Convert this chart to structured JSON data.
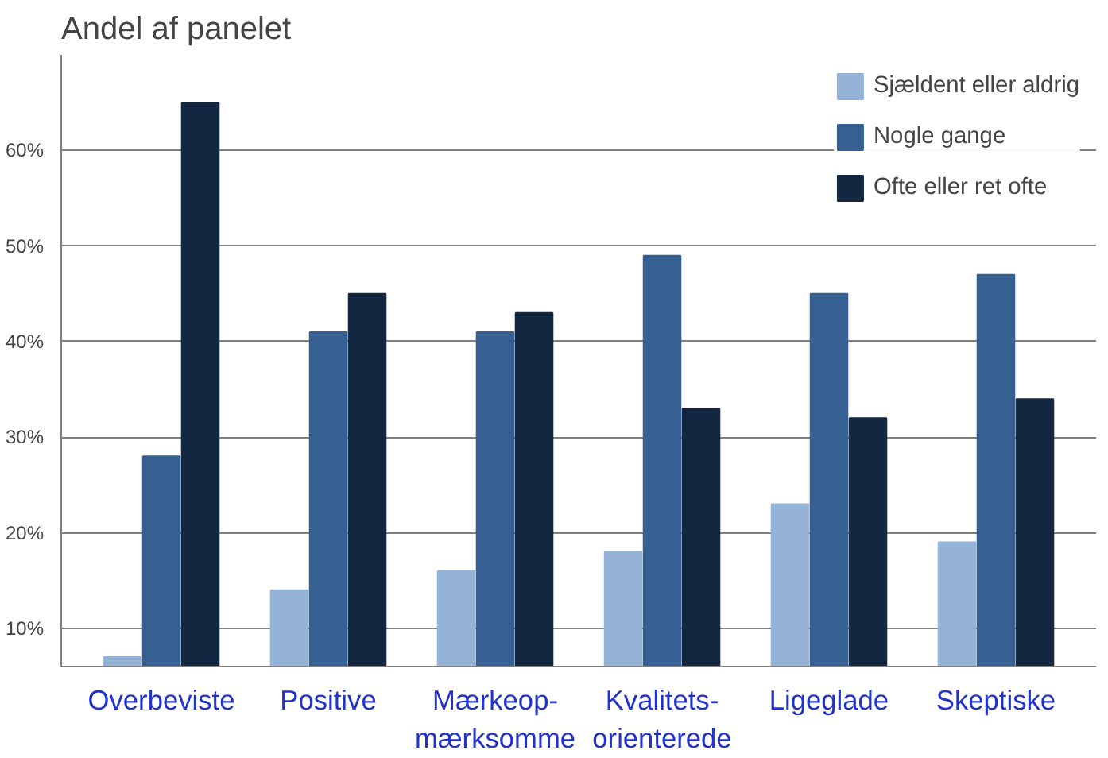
{
  "chart_data": {
    "type": "bar",
    "title": "Andel af panelet",
    "categories": [
      "Overbeviste",
      "Positive",
      "Mærkeop-\nmærksomme",
      "Kvalitets-\norienterede",
      "Ligeglade",
      "Skeptiske"
    ],
    "series": [
      {
        "name": "Sjældent eller aldrig",
        "color": "#95b3d7",
        "values": [
          7,
          14,
          16,
          18,
          23,
          19
        ]
      },
      {
        "name": "Nogle gange",
        "color": "#366092",
        "values": [
          28,
          41,
          41,
          49,
          45,
          47
        ]
      },
      {
        "name": "Ofte eller ret ofte",
        "color": "#132840",
        "values": [
          65,
          45,
          43,
          33,
          32,
          34
        ]
      }
    ],
    "ylim": [
      6,
      70
    ],
    "yticks": [
      {
        "value": 10,
        "label": "10%"
      },
      {
        "value": 20,
        "label": "20%"
      },
      {
        "value": 30,
        "label": "30%"
      },
      {
        "value": 40,
        "label": "40%"
      },
      {
        "value": 50,
        "label": "50%"
      },
      {
        "value": 60,
        "label": "60%"
      }
    ],
    "grid": "y",
    "legend": "top right"
  }
}
